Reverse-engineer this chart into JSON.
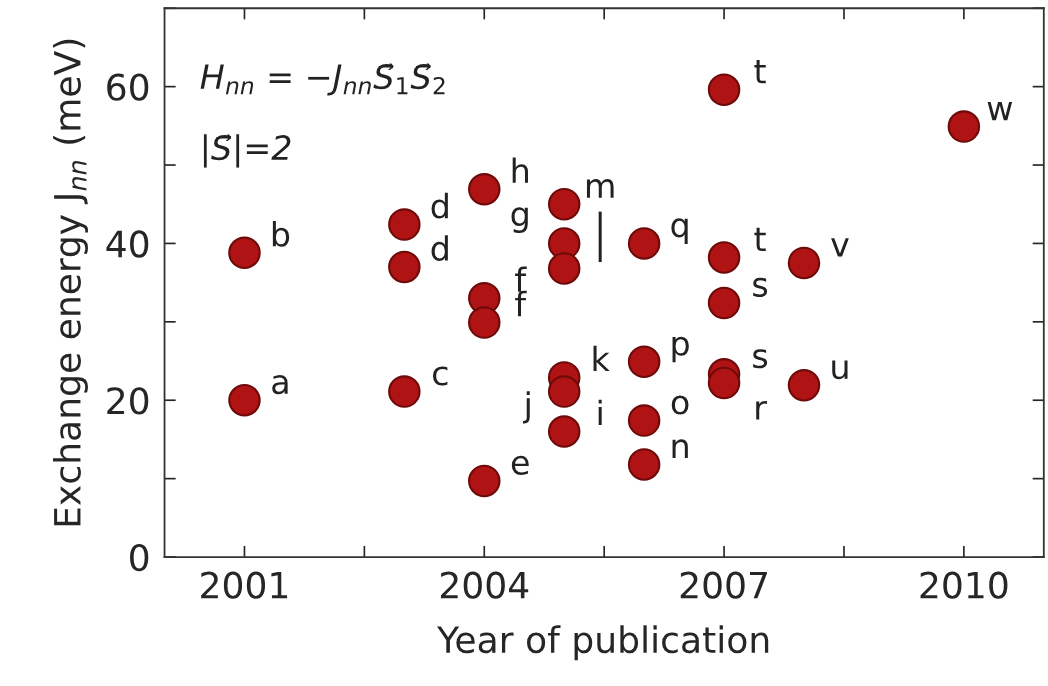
{
  "chart_data": {
    "type": "scatter",
    "xlabel": "Year of publication",
    "ylabel": "Exchange energy J$_{nn}$ (meV)",
    "x": [
      2001,
      2001,
      2003,
      2003,
      2003,
      2004,
      2004,
      2004,
      2004,
      2005,
      2005,
      2005,
      2005,
      2005,
      2005,
      2006,
      2006,
      2006,
      2006,
      2007,
      2007,
      2007,
      2007,
      2007,
      2008,
      2008,
      2010
    ],
    "series": [
      {
        "color": "#b01313",
        "values": [
          20,
          38.8,
          21.1,
          42.4,
          37,
          9.7,
          46.9,
          33,
          29.9,
          45,
          40,
          36.8,
          22.9,
          21.1,
          16,
          40,
          24.9,
          17.4,
          11.8,
          59.6,
          38.2,
          32.4,
          23.3,
          22.2,
          37.5,
          21.9,
          54.9
        ]
      }
    ],
    "marker": "circle",
    "xlim": [
      2000,
      2011
    ],
    "ylim": [
      0,
      70
    ],
    "xticks": [
      2001,
      {
        "value": 2002.5,
        "label": null
      },
      2004,
      {
        "value": 2005.5,
        "label": null
      },
      2007,
      {
        "value": 2008.5,
        "label": null
      },
      2010
    ],
    "yticks": [
      0,
      {
        "value": 10,
        "label": null
      },
      20,
      {
        "value": 30,
        "label": null
      },
      40,
      {
        "value": 50,
        "label": null
      },
      60,
      {
        "value": 70,
        "label": null
      }
    ],
    "grid": false,
    "annotations": [
      "H$_{nn}$ = −J$_{nn}$S⃗$_{1}$S⃗$_{2}$",
      "|S⃗|=2",
      {
        "text": "a",
        "x": 2001,
        "y": 20
      },
      {
        "text": "b",
        "x": 2001,
        "y": 38.8
      },
      {
        "text": "c",
        "x": 2003,
        "y": 21.1
      },
      {
        "text": "d",
        "x": 2003,
        "y": 42.4
      },
      {
        "text": "d",
        "x": 2003,
        "y": 37
      },
      {
        "text": "e",
        "x": 2004,
        "y": 9.7
      },
      {
        "text": "h",
        "x": 2004,
        "y": 46.9
      },
      {
        "text": "g",
        "x": 2004,
        "y": 46.9
      },
      {
        "text": "f",
        "x": 2004,
        "y": 33
      },
      {
        "text": "f",
        "x": 2004,
        "y": 29.9
      },
      {
        "text": "m",
        "x": 2005,
        "y": 45
      },
      {
        "text": "l",
        "x": 2005,
        "y": 40
      },
      {
        "text": "l",
        "x": 2005,
        "y": 36.8
      },
      {
        "text": "k",
        "x": 2005,
        "y": 22.9
      },
      {
        "text": "i",
        "x": 2005,
        "y": 16
      },
      {
        "text": "j",
        "x": 2005,
        "y": 21.1
      },
      {
        "text": "q",
        "x": 2006,
        "y": 40
      },
      {
        "text": "p",
        "x": 2006,
        "y": 24.9
      },
      {
        "text": "o",
        "x": 2006,
        "y": 17.4
      },
      {
        "text": "n",
        "x": 2006,
        "y": 11.8
      },
      {
        "text": "t",
        "x": 2007,
        "y": 59.6
      },
      {
        "text": "t",
        "x": 2007,
        "y": 38.2
      },
      {
        "text": "s",
        "x": 2007,
        "y": 32.4
      },
      {
        "text": "s",
        "x": 2007,
        "y": 23.3
      },
      {
        "text": "r",
        "x": 2007,
        "y": 22.2
      },
      {
        "text": "v",
        "x": 2008,
        "y": 37.5
      },
      {
        "text": "u",
        "x": 2008,
        "y": 21.9
      },
      {
        "text": "w",
        "x": 2010,
        "y": 54.9
      }
    ]
  }
}
